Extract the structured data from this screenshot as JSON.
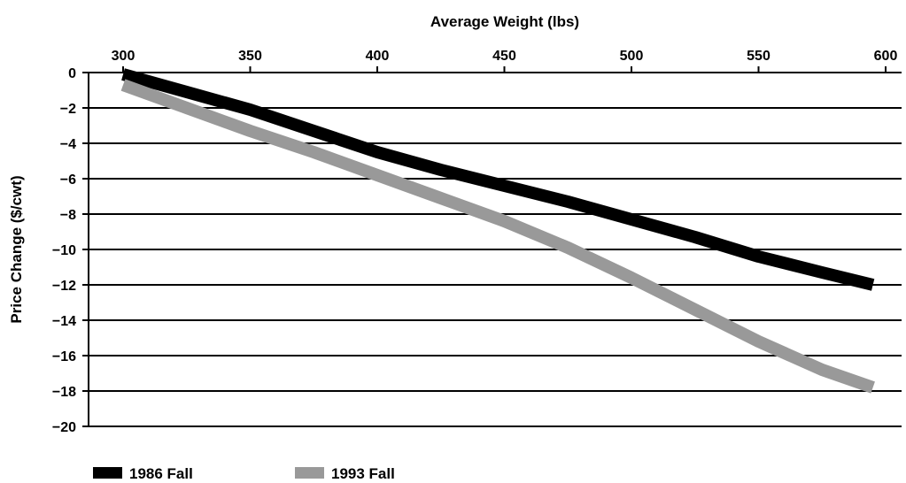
{
  "chart_data": {
    "type": "line",
    "title": "",
    "xlabel": "Average Weight (lbs)",
    "ylabel": "Price Change ($/cwt)",
    "xlim": [
      300,
      600
    ],
    "ylim": [
      -20,
      0
    ],
    "x_ticks": [
      300,
      350,
      400,
      450,
      500,
      550,
      600
    ],
    "y_ticks": [
      0,
      -2,
      -4,
      -6,
      -8,
      -10,
      -12,
      -14,
      -16,
      -18,
      -20
    ],
    "x_tick_labels": [
      "300",
      "350",
      "400",
      "450",
      "500",
      "550",
      "600"
    ],
    "y_tick_labels": [
      "0",
      "−2",
      "−4",
      "−6",
      "−8",
      "−10",
      "−12",
      "−14",
      "−16",
      "−18",
      "−20"
    ],
    "x_axis_position": "top",
    "grid": {
      "horizontal": true,
      "vertical": false
    },
    "legend_position": "bottom-left",
    "series": [
      {
        "name": "1986 Fall",
        "color": "#000000",
        "x": [
          300,
          325,
          350,
          375,
          400,
          425,
          450,
          475,
          500,
          525,
          550,
          575,
          595
        ],
        "y": [
          -0.1,
          -1.1,
          -2.1,
          -3.3,
          -4.5,
          -5.5,
          -6.4,
          -7.3,
          -8.3,
          -9.3,
          -10.4,
          -11.3,
          -12.0
        ]
      },
      {
        "name": "1993 Fall",
        "color": "#999999",
        "x": [
          300,
          325,
          350,
          375,
          400,
          425,
          450,
          475,
          500,
          525,
          550,
          575,
          595
        ],
        "y": [
          -0.7,
          -2.0,
          -3.3,
          -4.5,
          -5.8,
          -7.1,
          -8.4,
          -9.9,
          -11.6,
          -13.4,
          -15.2,
          -16.8,
          -17.8
        ]
      }
    ]
  }
}
